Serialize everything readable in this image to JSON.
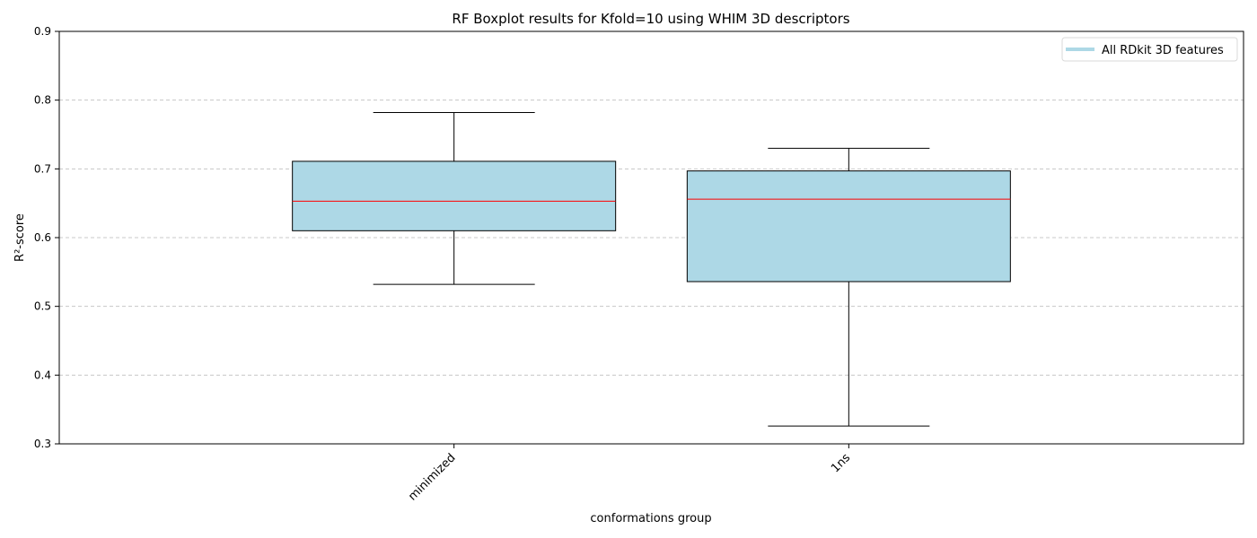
{
  "chart_data": {
    "type": "box",
    "title": "RF Boxplot results for Kfold=10 using WHIM 3D descriptors",
    "xlabel": "conformations group",
    "ylabel": "R²-score",
    "ylim": [
      0.3,
      0.9
    ],
    "yticks": [
      0.3,
      0.4,
      0.5,
      0.6,
      0.7,
      0.8,
      0.9
    ],
    "ytick_labels": [
      "0.3",
      "0.4",
      "0.5",
      "0.6",
      "0.7",
      "0.8",
      "0.9"
    ],
    "categories": [
      "minimized",
      "1ns"
    ],
    "boxes": [
      {
        "category": "minimized",
        "whisker_low": 0.532,
        "q1": 0.61,
        "median": 0.653,
        "q3": 0.711,
        "whisker_high": 0.782
      },
      {
        "category": "1ns",
        "whisker_low": 0.326,
        "q1": 0.536,
        "median": 0.656,
        "q3": 0.697,
        "whisker_high": 0.73
      }
    ],
    "legend": {
      "placement": "top-right",
      "entries": [
        {
          "label": "All RDkit 3D features",
          "color": "#add8e6"
        }
      ]
    },
    "grid": {
      "y": true,
      "x": false,
      "style": "dashed"
    },
    "colors": {
      "box_fill": "#add8e6",
      "median": "#ff0000",
      "lines": "#000000",
      "grid": "#c8c8c8"
    }
  }
}
